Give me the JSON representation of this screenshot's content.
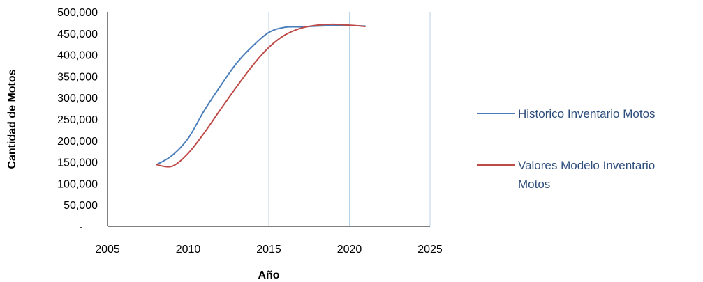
{
  "chart_data": {
    "type": "line",
    "title": "",
    "xlabel": "Año",
    "ylabel": "Cantidad de Motos",
    "xlim": [
      2005,
      2025
    ],
    "ylim": [
      0,
      500000
    ],
    "x_ticks": [
      2005,
      2010,
      2015,
      2020,
      2025
    ],
    "y_ticks": [
      0,
      50000,
      100000,
      150000,
      200000,
      250000,
      300000,
      350000,
      400000,
      450000,
      500000
    ],
    "y_tick_labels": [
      "-",
      "50,000",
      "100,000",
      "150,000",
      "200,000",
      "250,000",
      "300,000",
      "350,000",
      "400,000",
      "450,000",
      "500,000"
    ],
    "grid": "vertical",
    "legend_position": "right",
    "series": [
      {
        "name": "Historico Inventario Motos",
        "color": "#4a7ebb",
        "x": [
          2008,
          2009,
          2010,
          2011,
          2012,
          2013,
          2014,
          2015,
          2016,
          2017,
          2018,
          2019,
          2020,
          2021
        ],
        "y": [
          143000,
          165000,
          205000,
          270000,
          327000,
          380000,
          420000,
          452000,
          464000,
          465000,
          467000,
          468000,
          468000,
          467000
        ]
      },
      {
        "name": "Valores Modelo Inventario Motos",
        "color": "#be4b48",
        "x": [
          2008,
          2009,
          2010,
          2011,
          2012,
          2013,
          2014,
          2015,
          2016,
          2017,
          2018,
          2019,
          2020,
          2021
        ],
        "y": [
          144000,
          140000,
          170000,
          218000,
          272000,
          325000,
          375000,
          417000,
          446000,
          462000,
          469000,
          471000,
          469000,
          466000
        ]
      }
    ]
  }
}
